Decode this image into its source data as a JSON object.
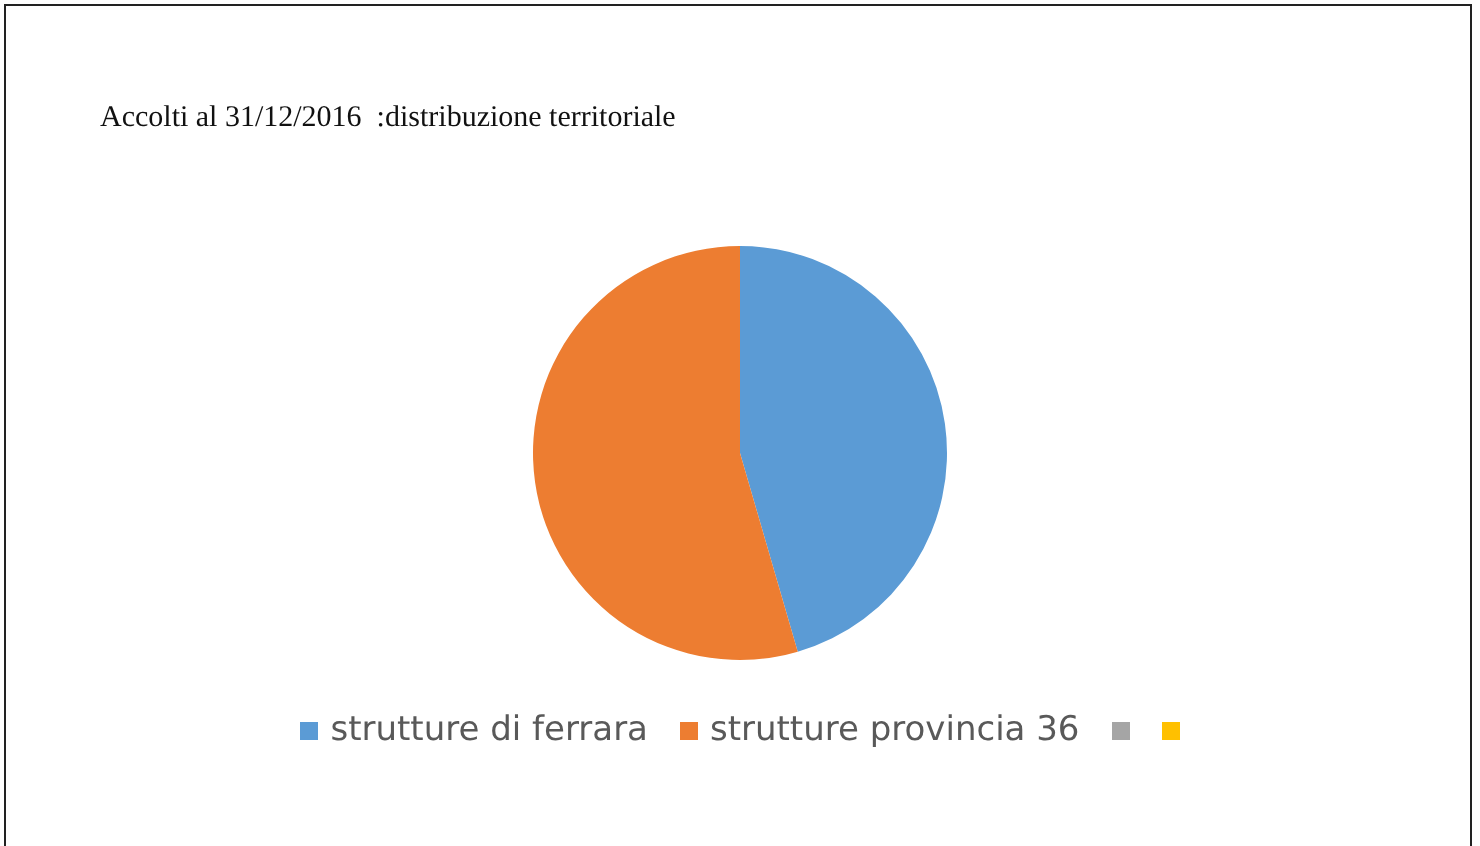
{
  "chart_data": {
    "type": "pie",
    "title": "Accolti al 31/12/2016  :distribuzione territoriale",
    "categories": [
      "strutture di ferrara",
      "strutture provincia 36",
      null,
      null
    ],
    "values": [
      45.5,
      54.5,
      0,
      0
    ],
    "colors": [
      "#5b9bd5",
      "#ed7d31",
      "#a5a5a5",
      "#ffc000"
    ],
    "legend": "bottom"
  }
}
